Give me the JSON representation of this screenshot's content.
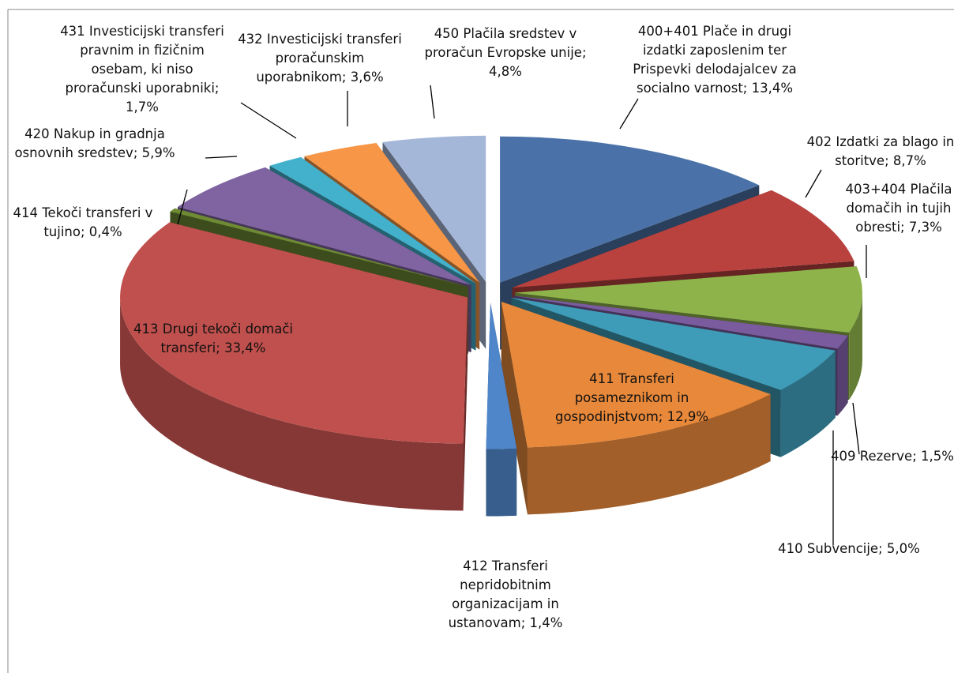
{
  "chart_data": {
    "type": "pie3d",
    "values": [
      13.4,
      8.7,
      7.3,
      1.5,
      5.0,
      12.9,
      1.4,
      33.4,
      0.4,
      5.9,
      1.7,
      3.6,
      4.8
    ],
    "colors": [
      "#4a72a8",
      "#b9423f",
      "#8fb34b",
      "#7a5c9e",
      "#3f9cb8",
      "#e7883a",
      "#4f86c9",
      "#c0504d",
      "#6e8b34",
      "#8064a2",
      "#43b1cc",
      "#f79646",
      "#a5b7d9"
    ],
    "value_labels": [
      [
        "400+401 Plače in drugi",
        "izdatki zaposlenim ter",
        "Prispevki delodajalcev za",
        "socialno varnost; 13,4%"
      ],
      [
        "402 Izdatki za blago in",
        "storitve; 8,7%"
      ],
      [
        "403+404 Plačila",
        "domačih in tujih",
        "obresti; 7,3%"
      ],
      [
        "409 Rezerve; 1,5%"
      ],
      [
        "410 Subvencije; 5,0%"
      ],
      [
        "411 Transferi",
        "posameznikom in",
        "gospodinjstvom; 12,9%"
      ],
      [
        "412 Transferi",
        "nepridobitnim",
        "organizacijam in",
        "ustanovam; 1,4%"
      ],
      [
        "413 Drugi tekoči domači",
        "transferi; 33,4%"
      ],
      [
        "414 Tekoči transferi v",
        "tujino; 0,4%"
      ],
      [
        "420 Nakup in gradnja",
        "osnovnih sredstev; 5,9%"
      ],
      [
        "431 Investicijski transferi",
        "pravnim in fizičnim",
        "osebam, ki niso",
        "proračunski uporabniki;",
        "1,7%"
      ],
      [
        "432 Investicijski transferi",
        "proračunskim",
        "uporabnikom; 3,6%"
      ],
      [
        "450 Plačila sredstev v",
        "proračun Evropske unije;",
        "4,8%"
      ]
    ]
  }
}
